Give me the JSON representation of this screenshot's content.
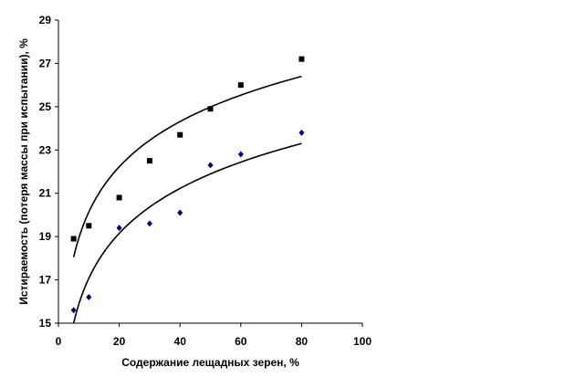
{
  "chart_data": {
    "type": "scatter",
    "title": "",
    "xlabel": "Содержание лещадных зерен, %",
    "ylabel": "Истираемость (потеря массы при испытании), %",
    "xlim": [
      0,
      100
    ],
    "ylim": [
      15,
      29
    ],
    "x_ticks": [
      0,
      20,
      40,
      60,
      80,
      100
    ],
    "y_ticks": [
      15,
      17,
      19,
      21,
      23,
      25,
      27,
      29
    ],
    "grid": false,
    "legend": "none",
    "series": [
      {
        "marker": "square",
        "color": "#000000",
        "x": [
          5,
          10,
          20,
          30,
          40,
          50,
          60,
          80
        ],
        "y": [
          18.9,
          19.5,
          20.8,
          22.5,
          23.7,
          24.9,
          26.0,
          27.2
        ],
        "trend": {
          "type": "logarithmic",
          "x_from": 5,
          "x_to": 80,
          "y_from": 18.05,
          "y_to": 26.4
        }
      },
      {
        "marker": "diamond",
        "color": "#00008B",
        "x": [
          5,
          10,
          20,
          30,
          40,
          50,
          60,
          80
        ],
        "y": [
          15.6,
          16.2,
          19.4,
          19.6,
          20.1,
          22.3,
          22.8,
          23.8
        ],
        "trend": {
          "type": "logarithmic",
          "x_from": 5,
          "x_to": 80,
          "y_from": 15.0,
          "y_to": 23.3
        }
      }
    ]
  }
}
